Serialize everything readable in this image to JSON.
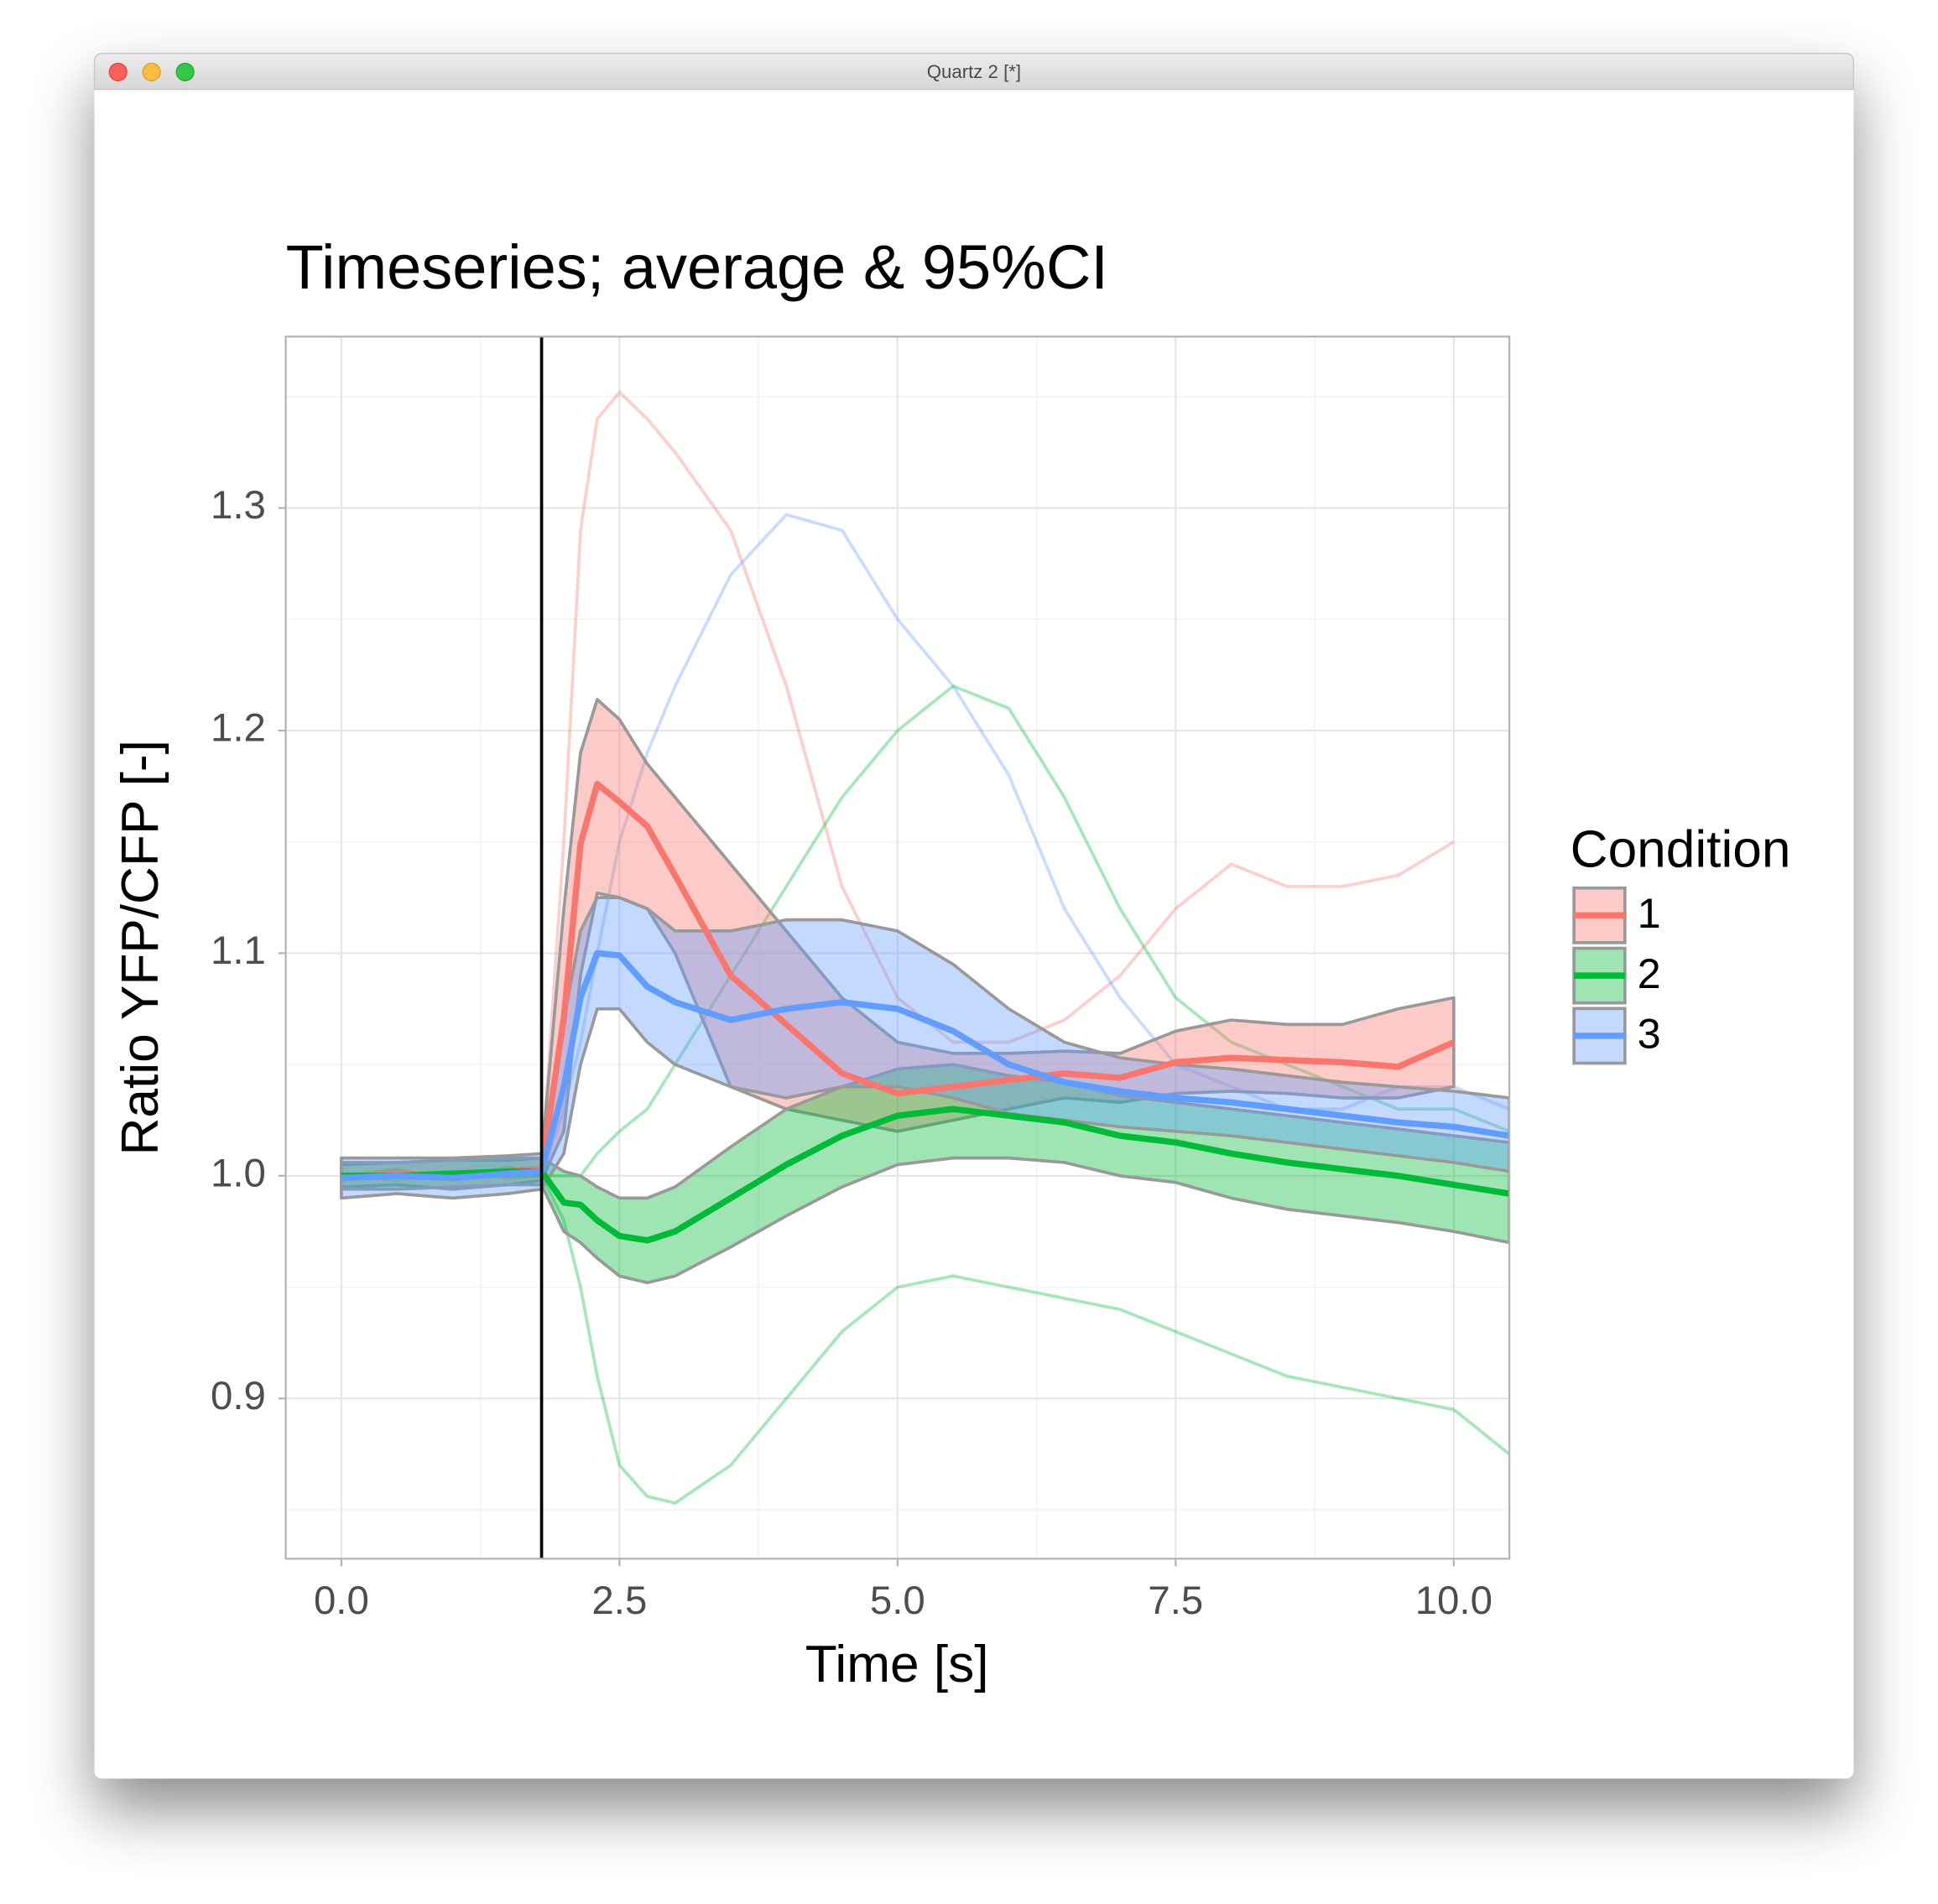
{
  "window_title": "Quartz 2 [*]",
  "chart_data": {
    "type": "line",
    "title": "Timeseries; average & 95%CI",
    "x_label": "Time [s]",
    "y_label": "Ratio YFP/CFP [-]",
    "legend_title": "Condition",
    "legend": "right",
    "x": [
      0,
      0.5,
      1,
      1.5,
      1.8,
      2.0,
      2.15,
      2.3,
      2.5,
      2.75,
      3,
      3.5,
      4,
      4.5,
      5,
      5.5,
      6,
      6.5,
      7,
      7.5,
      8,
      8.5,
      9,
      9.5,
      10,
      10.5
    ],
    "series": [
      {
        "name": "1",
        "color": "#F8766D",
        "values": [
          1.0,
          1.001,
          1.0,
          1.002,
          1.003,
          1.071,
          1.149,
          1.176,
          1.168,
          1.157,
          1.135,
          1.09,
          1.068,
          1.046,
          1.037,
          1.04,
          1.043,
          1.046,
          1.044,
          1.051,
          1.053,
          1.052,
          1.051,
          1.049,
          1.06,
          null
        ],
        "upper": [
          1.005,
          1.006,
          1.007,
          1.007,
          1.008,
          1.12,
          1.19,
          1.214,
          1.205,
          1.185,
          1.17,
          1.14,
          1.11,
          1.08,
          1.06,
          1.055,
          1.055,
          1.056,
          1.055,
          1.065,
          1.07,
          1.068,
          1.068,
          1.075,
          1.08,
          null
        ],
        "lower": [
          0.995,
          0.996,
          0.994,
          0.996,
          0.998,
          1.02,
          1.09,
          1.127,
          1.125,
          1.12,
          1.1,
          1.04,
          1.03,
          1.025,
          1.02,
          1.025,
          1.03,
          1.035,
          1.033,
          1.037,
          1.038,
          1.037,
          1.035,
          1.035,
          1.04,
          null
        ]
      },
      {
        "name": "2",
        "color": "#00BA38",
        "values": [
          1.0,
          1.0,
          1.001,
          1.002,
          1.002,
          0.988,
          0.987,
          0.98,
          0.973,
          0.971,
          0.975,
          0.99,
          1.005,
          1.018,
          1.027,
          1.03,
          1.027,
          1.024,
          1.018,
          1.015,
          1.01,
          1.006,
          1.003,
          1.0,
          0.996,
          0.992
        ],
        "upper": [
          1.006,
          1.006,
          1.007,
          1.008,
          1.008,
          1.002,
          1.0,
          0.995,
          0.99,
          0.99,
          0.995,
          1.013,
          1.03,
          1.04,
          1.048,
          1.05,
          1.045,
          1.042,
          1.036,
          1.033,
          1.03,
          1.027,
          1.024,
          1.021,
          1.018,
          1.015
        ],
        "lower": [
          0.994,
          0.994,
          0.995,
          0.996,
          0.996,
          0.975,
          0.97,
          0.963,
          0.955,
          0.952,
          0.955,
          0.968,
          0.982,
          0.995,
          1.005,
          1.008,
          1.008,
          1.006,
          1.0,
          0.997,
          0.99,
          0.985,
          0.982,
          0.979,
          0.975,
          0.97
        ]
      },
      {
        "name": "3",
        "color": "#619CFF",
        "values": [
          0.999,
          1.0,
          0.999,
          1.001,
          1.002,
          1.04,
          1.08,
          1.1,
          1.099,
          1.085,
          1.078,
          1.07,
          1.075,
          1.078,
          1.075,
          1.065,
          1.05,
          1.042,
          1.038,
          1.035,
          1.033,
          1.03,
          1.027,
          1.024,
          1.022,
          1.018
        ],
        "upper": [
          1.008,
          1.008,
          1.008,
          1.009,
          1.01,
          1.07,
          1.11,
          1.125,
          1.125,
          1.12,
          1.11,
          1.11,
          1.115,
          1.115,
          1.11,
          1.095,
          1.075,
          1.06,
          1.053,
          1.05,
          1.048,
          1.045,
          1.042,
          1.04,
          1.038,
          1.035
        ],
        "lower": [
          0.99,
          0.992,
          0.99,
          0.992,
          0.994,
          1.01,
          1.05,
          1.075,
          1.075,
          1.06,
          1.05,
          1.04,
          1.035,
          1.04,
          1.04,
          1.035,
          1.028,
          1.025,
          1.022,
          1.02,
          1.018,
          1.015,
          1.012,
          1.009,
          1.006,
          1.002
        ]
      }
    ],
    "traces": [
      {
        "color": "#F8766D",
        "values": [
          1.0,
          1.002,
          1.0,
          1.003,
          1.004,
          1.15,
          1.29,
          1.34,
          1.352,
          1.34,
          1.325,
          1.29,
          1.22,
          1.13,
          1.08,
          1.06,
          1.06,
          1.07,
          1.09,
          1.12,
          1.14,
          1.13,
          1.13,
          1.135,
          1.15,
          null
        ]
      },
      {
        "color": "#619CFF",
        "values": [
          1.0,
          0.998,
          1.001,
          1.0,
          1.0,
          1.03,
          1.06,
          1.1,
          1.15,
          1.19,
          1.22,
          1.27,
          1.297,
          1.29,
          1.25,
          1.22,
          1.18,
          1.12,
          1.08,
          1.05,
          1.04,
          1.03,
          1.03,
          1.04,
          1.04,
          1.03
        ]
      },
      {
        "color": "#00BA38",
        "values": [
          1.0,
          1.003,
          0.998,
          1.004,
          1.0,
          1.0,
          1.0,
          1.01,
          1.02,
          1.03,
          1.05,
          1.09,
          1.13,
          1.17,
          1.2,
          1.22,
          1.21,
          1.17,
          1.12,
          1.08,
          1.06,
          1.05,
          1.04,
          1.03,
          1.03,
          1.02
        ]
      },
      {
        "color": "#00BA38",
        "values": [
          0.998,
          1.0,
          1.002,
          0.999,
          1.0,
          0.98,
          0.95,
          0.91,
          0.87,
          0.856,
          0.853,
          0.87,
          0.9,
          0.93,
          0.95,
          0.955,
          0.95,
          0.945,
          0.94,
          0.93,
          0.92,
          0.91,
          0.905,
          0.9,
          0.895,
          0.875
        ]
      }
    ],
    "vline": 1.8,
    "xlim": [
      -0.5,
      10.5
    ],
    "ylim": [
      0.828,
      1.377
    ],
    "xticks": [
      {
        "value": 0,
        "label": "0.0"
      },
      2.5,
      {
        "value": 5,
        "label": "5.0"
      },
      7.5,
      {
        "value": 10,
        "label": "10.0"
      }
    ],
    "yticks": [
      0.9,
      {
        "value": 1,
        "label": "1.0"
      },
      1.1,
      1.2,
      1.3
    ],
    "xminor": [
      1.25,
      3.75,
      6.25,
      8.75
    ],
    "yminor": [
      0.85,
      0.95,
      1.05,
      1.15,
      1.25,
      1.35
    ],
    "grid": true
  }
}
